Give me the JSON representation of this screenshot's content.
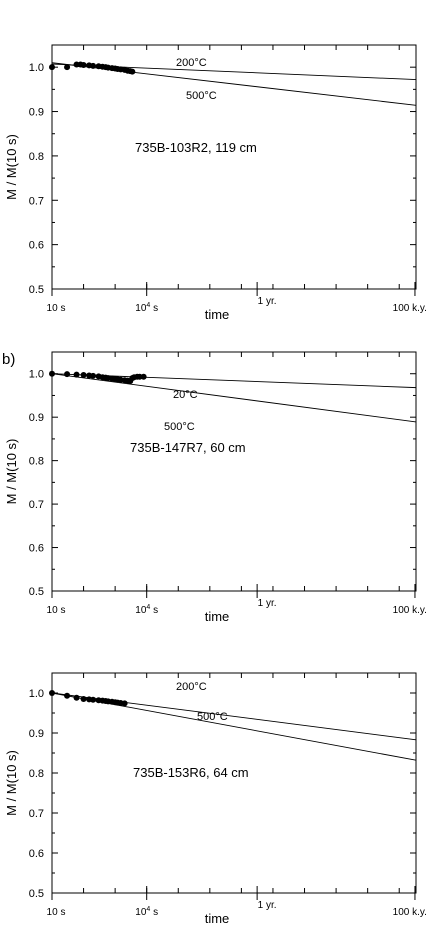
{
  "chart_data": [
    {
      "type": "scatter",
      "panel_label": "",
      "annotation": "735B-103R2, 119 cm",
      "xlabel": "time",
      "ylabel": "M / M(10 s)",
      "x_scale": "log",
      "xlim_seconds": [
        10,
        3400000000000.0
      ],
      "ylim": [
        0.5,
        1.05
      ],
      "yticks": [
        0.5,
        0.6,
        0.7,
        0.8,
        0.9,
        1.0
      ],
      "ytick_labels": [
        "0.5",
        "0.6",
        "0.7",
        "0.8",
        "0.9",
        "1.0"
      ],
      "xtick_marks": [
        {
          "x": 10,
          "label": "10 s"
        },
        {
          "x": 10000,
          "label": "10⁴ s"
        },
        {
          "x": 31500000.0,
          "label": "1 yr."
        },
        {
          "x": 3150000000000.0,
          "label": "100 k.y."
        }
      ],
      "series": [
        {
          "name": "",
          "kind": "points",
          "x": [
            10,
            30,
            60,
            80,
            100,
            150,
            200,
            300,
            400,
            500,
            600,
            800,
            1000,
            1200,
            1500,
            2000,
            2500,
            3000,
            3500
          ],
          "y": [
            1.0,
            1.0,
            1.006,
            1.006,
            1.005,
            1.004,
            1.003,
            1.002,
            1.001,
            1.0,
            0.999,
            0.998,
            0.997,
            0.996,
            0.995,
            0.994,
            0.992,
            0.991,
            0.99
          ]
        },
        {
          "name": "200°C",
          "kind": "line",
          "x": [
            10,
            3400000000000.0
          ],
          "y": [
            1.007,
            0.972
          ]
        },
        {
          "name": "500°C",
          "kind": "line",
          "x": [
            10,
            3400000000000.0
          ],
          "y": [
            1.01,
            0.914
          ]
        }
      ],
      "grid": false,
      "legend": "none"
    },
    {
      "type": "scatter",
      "panel_label": "b)",
      "annotation": "735B-147R7, 60 cm",
      "xlabel": "time",
      "ylabel": "M / M(10 s)",
      "x_scale": "log",
      "xlim_seconds": [
        10,
        3400000000000.0
      ],
      "ylim": [
        0.5,
        1.05
      ],
      "yticks": [
        0.5,
        0.6,
        0.7,
        0.8,
        0.9,
        1.0
      ],
      "ytick_labels": [
        "0.5",
        "0.6",
        "0.7",
        "0.8",
        "0.9",
        "1.0"
      ],
      "xtick_marks": [
        {
          "x": 10,
          "label": "10 s"
        },
        {
          "x": 10000,
          "label": "10⁴ s"
        },
        {
          "x": 31500000.0,
          "label": "1 yr."
        },
        {
          "x": 3150000000000.0,
          "label": "100 k.y."
        }
      ],
      "series": [
        {
          "name": "",
          "kind": "points",
          "x": [
            10,
            30,
            60,
            100,
            150,
            200,
            300,
            400,
            500,
            600,
            800,
            1000,
            1200,
            1500,
            2000,
            2500,
            3000,
            3500,
            4000,
            5000,
            6000,
            8000
          ],
          "y": [
            1.0,
            0.999,
            0.998,
            0.997,
            0.996,
            0.995,
            0.994,
            0.992,
            0.991,
            0.99,
            0.989,
            0.988,
            0.987,
            0.986,
            0.985,
            0.984,
            0.983,
            0.99,
            0.992,
            0.993,
            0.993,
            0.993
          ]
        },
        {
          "name": "20°C",
          "kind": "line",
          "x": [
            10,
            3400000000000.0
          ],
          "y": [
            1.0,
            0.968
          ]
        },
        {
          "name": "500°C",
          "kind": "line",
          "x": [
            10,
            3400000000000.0
          ],
          "y": [
            1.0,
            0.889
          ]
        }
      ],
      "grid": false,
      "legend": "none"
    },
    {
      "type": "scatter",
      "panel_label": "",
      "annotation": "735B-153R6, 64 cm",
      "xlabel": "time",
      "ylabel": "M / M(10 s)",
      "x_scale": "log",
      "xlim_seconds": [
        10,
        3400000000000.0
      ],
      "ylim": [
        0.5,
        1.05
      ],
      "yticks": [
        0.5,
        0.6,
        0.7,
        0.8,
        0.9,
        1.0
      ],
      "ytick_labels": [
        "0.5",
        "0.6",
        "0.7",
        "0.8",
        "0.9",
        "1.0"
      ],
      "xtick_marks": [
        {
          "x": 10,
          "label": "10 s"
        },
        {
          "x": 10000,
          "label": "10⁴ s"
        },
        {
          "x": 31500000.0,
          "label": "1 yr."
        },
        {
          "x": 3150000000000.0,
          "label": "100 k.y."
        }
      ],
      "series": [
        {
          "name": "",
          "kind": "points",
          "x": [
            10,
            30,
            60,
            100,
            150,
            200,
            300,
            400,
            500,
            600,
            800,
            1000,
            1200,
            1500,
            2000
          ],
          "y": [
            1.0,
            0.993,
            0.988,
            0.985,
            0.984,
            0.983,
            0.982,
            0.981,
            0.98,
            0.979,
            0.978,
            0.977,
            0.976,
            0.975,
            0.974
          ]
        },
        {
          "name": "200°C",
          "kind": "line",
          "x": [
            10,
            3400000000000.0
          ],
          "y": [
            1.0,
            0.883
          ]
        },
        {
          "name": "500°C",
          "kind": "line",
          "x": [
            10,
            3400000000000.0
          ],
          "y": [
            1.0,
            0.832
          ]
        }
      ],
      "grid": false,
      "legend": "none"
    }
  ]
}
